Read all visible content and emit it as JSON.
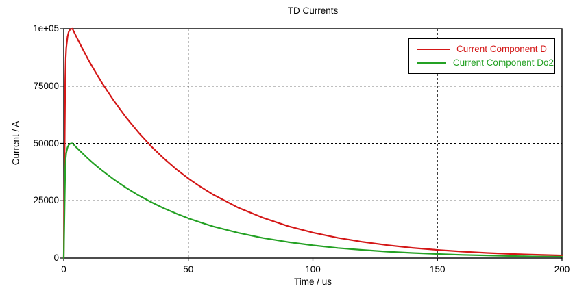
{
  "title": "TD Currents",
  "colors": {
    "background": "#ffffff",
    "frame": "#000000",
    "grid": "#000000",
    "text": "#000000",
    "series_d": "#d41717",
    "series_do2": "#24a124"
  },
  "legend": {
    "position": "top-right",
    "items": [
      {
        "label": "Current Component D",
        "color": "#d41717"
      },
      {
        "label": "Current Component Do2",
        "color": "#24a124"
      }
    ]
  },
  "chart_data": {
    "type": "line",
    "title": "TD Currents",
    "xlabel": "Time / us",
    "ylabel": "Current / A",
    "xlim": [
      0,
      200
    ],
    "ylim": [
      0,
      100000
    ],
    "grid": "dashed",
    "legend_position": "top-right",
    "x_ticks": [
      {
        "value": 0,
        "label": "0"
      },
      {
        "value": 50,
        "label": "50"
      },
      {
        "value": 100,
        "label": "100"
      },
      {
        "value": 150,
        "label": "150"
      },
      {
        "value": 200,
        "label": "200"
      }
    ],
    "y_ticks": [
      {
        "value": 0,
        "label": "0"
      },
      {
        "value": 25000,
        "label": "25000"
      },
      {
        "value": 50000,
        "label": "50000"
      },
      {
        "value": 75000,
        "label": "75000"
      },
      {
        "value": 100000,
        "label": "1e+05"
      }
    ],
    "series": [
      {
        "name": "Current Component D",
        "color": "#d41717",
        "peak": {
          "t": 3.5,
          "value": 100000
        },
        "points": [
          [
            0,
            0
          ],
          [
            0.2,
            25000
          ],
          [
            0.4,
            55000
          ],
          [
            0.6,
            78000
          ],
          [
            0.8,
            87000
          ],
          [
            1,
            91500
          ],
          [
            1.5,
            96500
          ],
          [
            2,
            98700
          ],
          [
            2.5,
            99600
          ],
          [
            3,
            99950
          ],
          [
            3.5,
            100000
          ],
          [
            4,
            98900
          ],
          [
            5,
            96650
          ],
          [
            6,
            94500
          ],
          [
            8,
            90300
          ],
          [
            10,
            86250
          ],
          [
            12,
            82450
          ],
          [
            15,
            77000
          ],
          [
            20,
            68750
          ],
          [
            25,
            61350
          ],
          [
            30,
            54750
          ],
          [
            35,
            48850
          ],
          [
            40,
            43600
          ],
          [
            45,
            38900
          ],
          [
            50,
            34700
          ],
          [
            55,
            31000
          ],
          [
            60,
            27650
          ],
          [
            70,
            22000
          ],
          [
            80,
            17550
          ],
          [
            90,
            13950
          ],
          [
            100,
            11100
          ],
          [
            110,
            8850
          ],
          [
            120,
            7050
          ],
          [
            130,
            5600
          ],
          [
            140,
            4450
          ],
          [
            150,
            3550
          ],
          [
            160,
            2850
          ],
          [
            170,
            2250
          ],
          [
            180,
            1800
          ],
          [
            190,
            1450
          ],
          [
            200,
            1150
          ]
        ]
      },
      {
        "name": "Current Component Do2",
        "color": "#24a124",
        "peak": {
          "t": 3.5,
          "value": 50000
        },
        "points": [
          [
            0,
            0
          ],
          [
            0.2,
            12500
          ],
          [
            0.4,
            27500
          ],
          [
            0.6,
            39000
          ],
          [
            0.8,
            43500
          ],
          [
            1,
            45750
          ],
          [
            1.5,
            48250
          ],
          [
            2,
            49350
          ],
          [
            2.5,
            49800
          ],
          [
            3,
            49975
          ],
          [
            3.5,
            50000
          ],
          [
            4,
            49450
          ],
          [
            5,
            48300
          ],
          [
            6,
            47250
          ],
          [
            8,
            45150
          ],
          [
            10,
            43100
          ],
          [
            12,
            41200
          ],
          [
            15,
            38500
          ],
          [
            20,
            34350
          ],
          [
            25,
            30650
          ],
          [
            30,
            27350
          ],
          [
            35,
            24450
          ],
          [
            40,
            21800
          ],
          [
            45,
            19450
          ],
          [
            50,
            17350
          ],
          [
            55,
            15500
          ],
          [
            60,
            13800
          ],
          [
            70,
            11000
          ],
          [
            80,
            8750
          ],
          [
            90,
            7000
          ],
          [
            100,
            5550
          ],
          [
            110,
            4400
          ],
          [
            120,
            3550
          ],
          [
            130,
            2800
          ],
          [
            140,
            2250
          ],
          [
            150,
            1800
          ],
          [
            160,
            1400
          ],
          [
            170,
            1150
          ],
          [
            180,
            900
          ],
          [
            190,
            700
          ],
          [
            200,
            600
          ]
        ]
      }
    ]
  }
}
